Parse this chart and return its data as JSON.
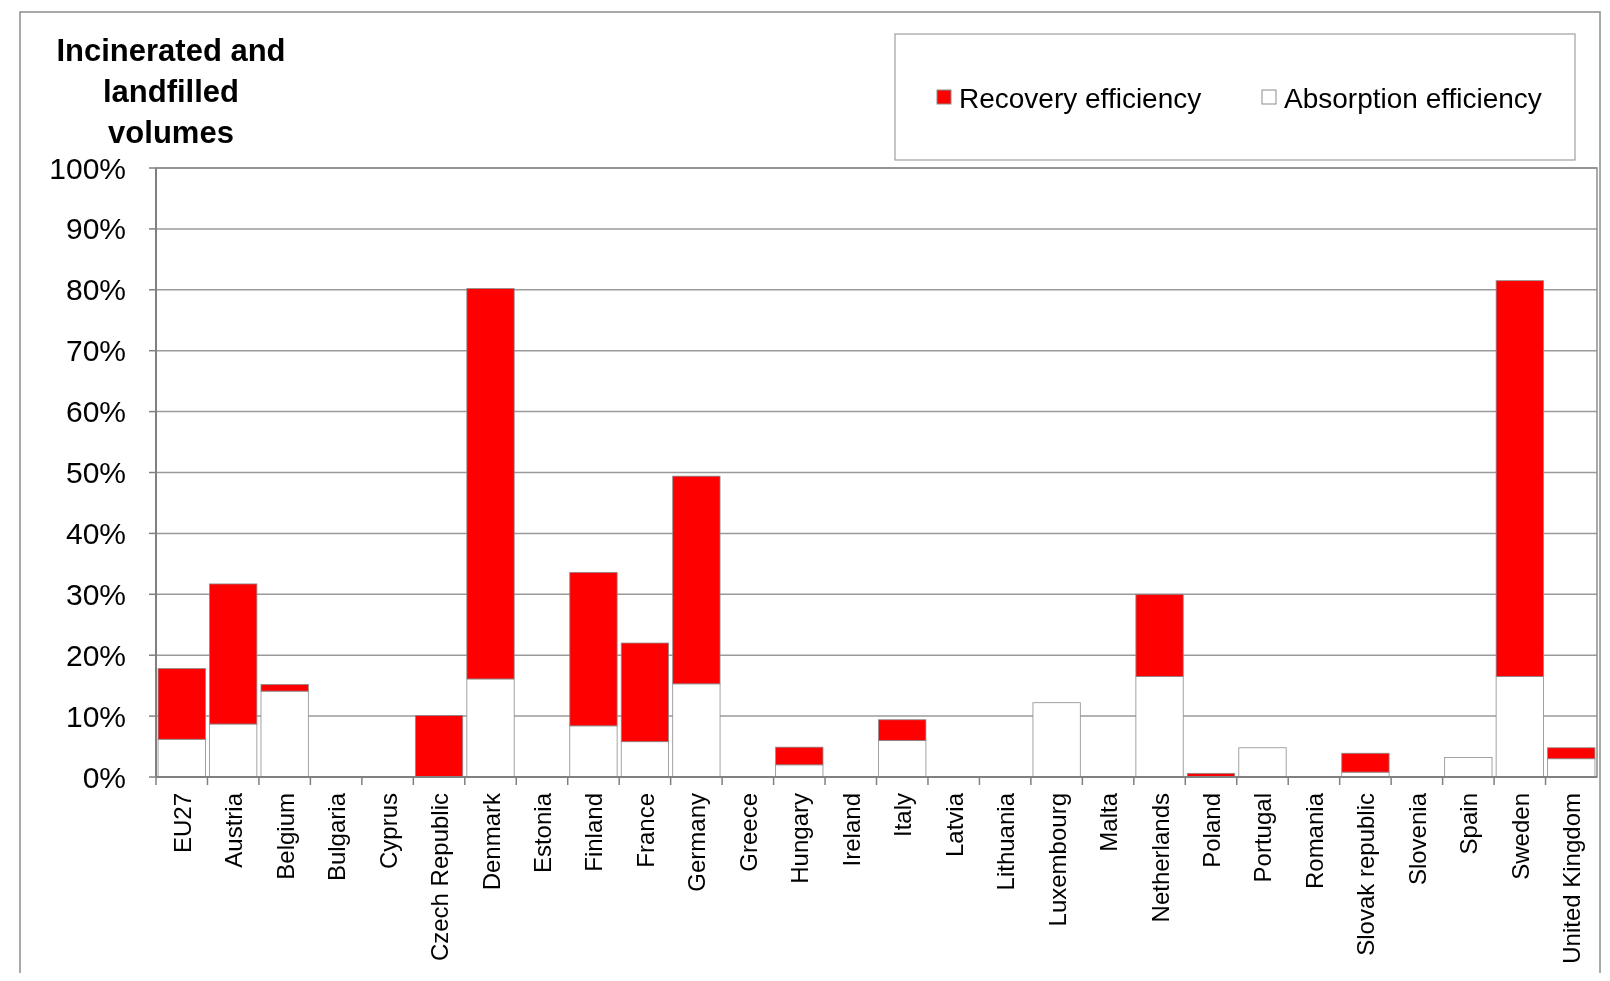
{
  "chart_data": {
    "type": "bar",
    "title": "Incinerated and landfilled volumes",
    "stacked": true,
    "categories": [
      "EU27",
      "Austria",
      "Belgium",
      "Bulgaria",
      "Cyprus",
      "Czech Republic",
      "Denmark",
      "Estonia",
      "Finland",
      "France",
      "Germany",
      "Greece",
      "Hungary",
      "Ireland",
      "Italy",
      "Latvia",
      "Lithuania",
      "Luxembourg",
      "Malta",
      "Netherlands",
      "Poland",
      "Portugal",
      "Romania",
      "Slovak republic",
      "Slovenia",
      "Spain",
      "Sweden",
      "United Kingdom"
    ],
    "series": [
      {
        "name": "Absorption efficiency",
        "color": "#ffffff",
        "values": [
          6.2,
          8.7,
          14.1,
          0,
          0,
          0,
          16.1,
          0,
          8.4,
          5.8,
          15.3,
          0,
          2.0,
          0,
          6.0,
          0,
          0,
          12.2,
          0,
          16.5,
          0,
          4.8,
          0,
          0.8,
          0,
          3.2,
          16.5,
          3.0
        ]
      },
      {
        "name": "Recovery efficiency",
        "color": "#ff0000",
        "values": [
          11.6,
          23.0,
          1.1,
          0,
          0,
          10.1,
          64.1,
          0,
          25.2,
          16.2,
          34.1,
          0,
          2.9,
          0,
          3.4,
          0,
          0,
          0,
          0,
          13.5,
          0.6,
          0,
          0,
          3.1,
          0,
          0,
          65.0,
          1.8
        ]
      }
    ],
    "ylim": [
      0,
      100
    ],
    "yticks": [
      {
        "value": 0,
        "label": "0%"
      },
      {
        "value": 10,
        "label": "10%"
      },
      {
        "value": 20,
        "label": "20%"
      },
      {
        "value": 30,
        "label": "30%"
      },
      {
        "value": 40,
        "label": "40%"
      },
      {
        "value": 50,
        "label": "50%"
      },
      {
        "value": 60,
        "label": "60%"
      },
      {
        "value": 70,
        "label": "70%"
      },
      {
        "value": 80,
        "label": "80%"
      },
      {
        "value": 90,
        "label": "90%"
      },
      {
        "value": 100,
        "label": "100%"
      }
    ],
    "grid": "y",
    "legend": "top right"
  }
}
